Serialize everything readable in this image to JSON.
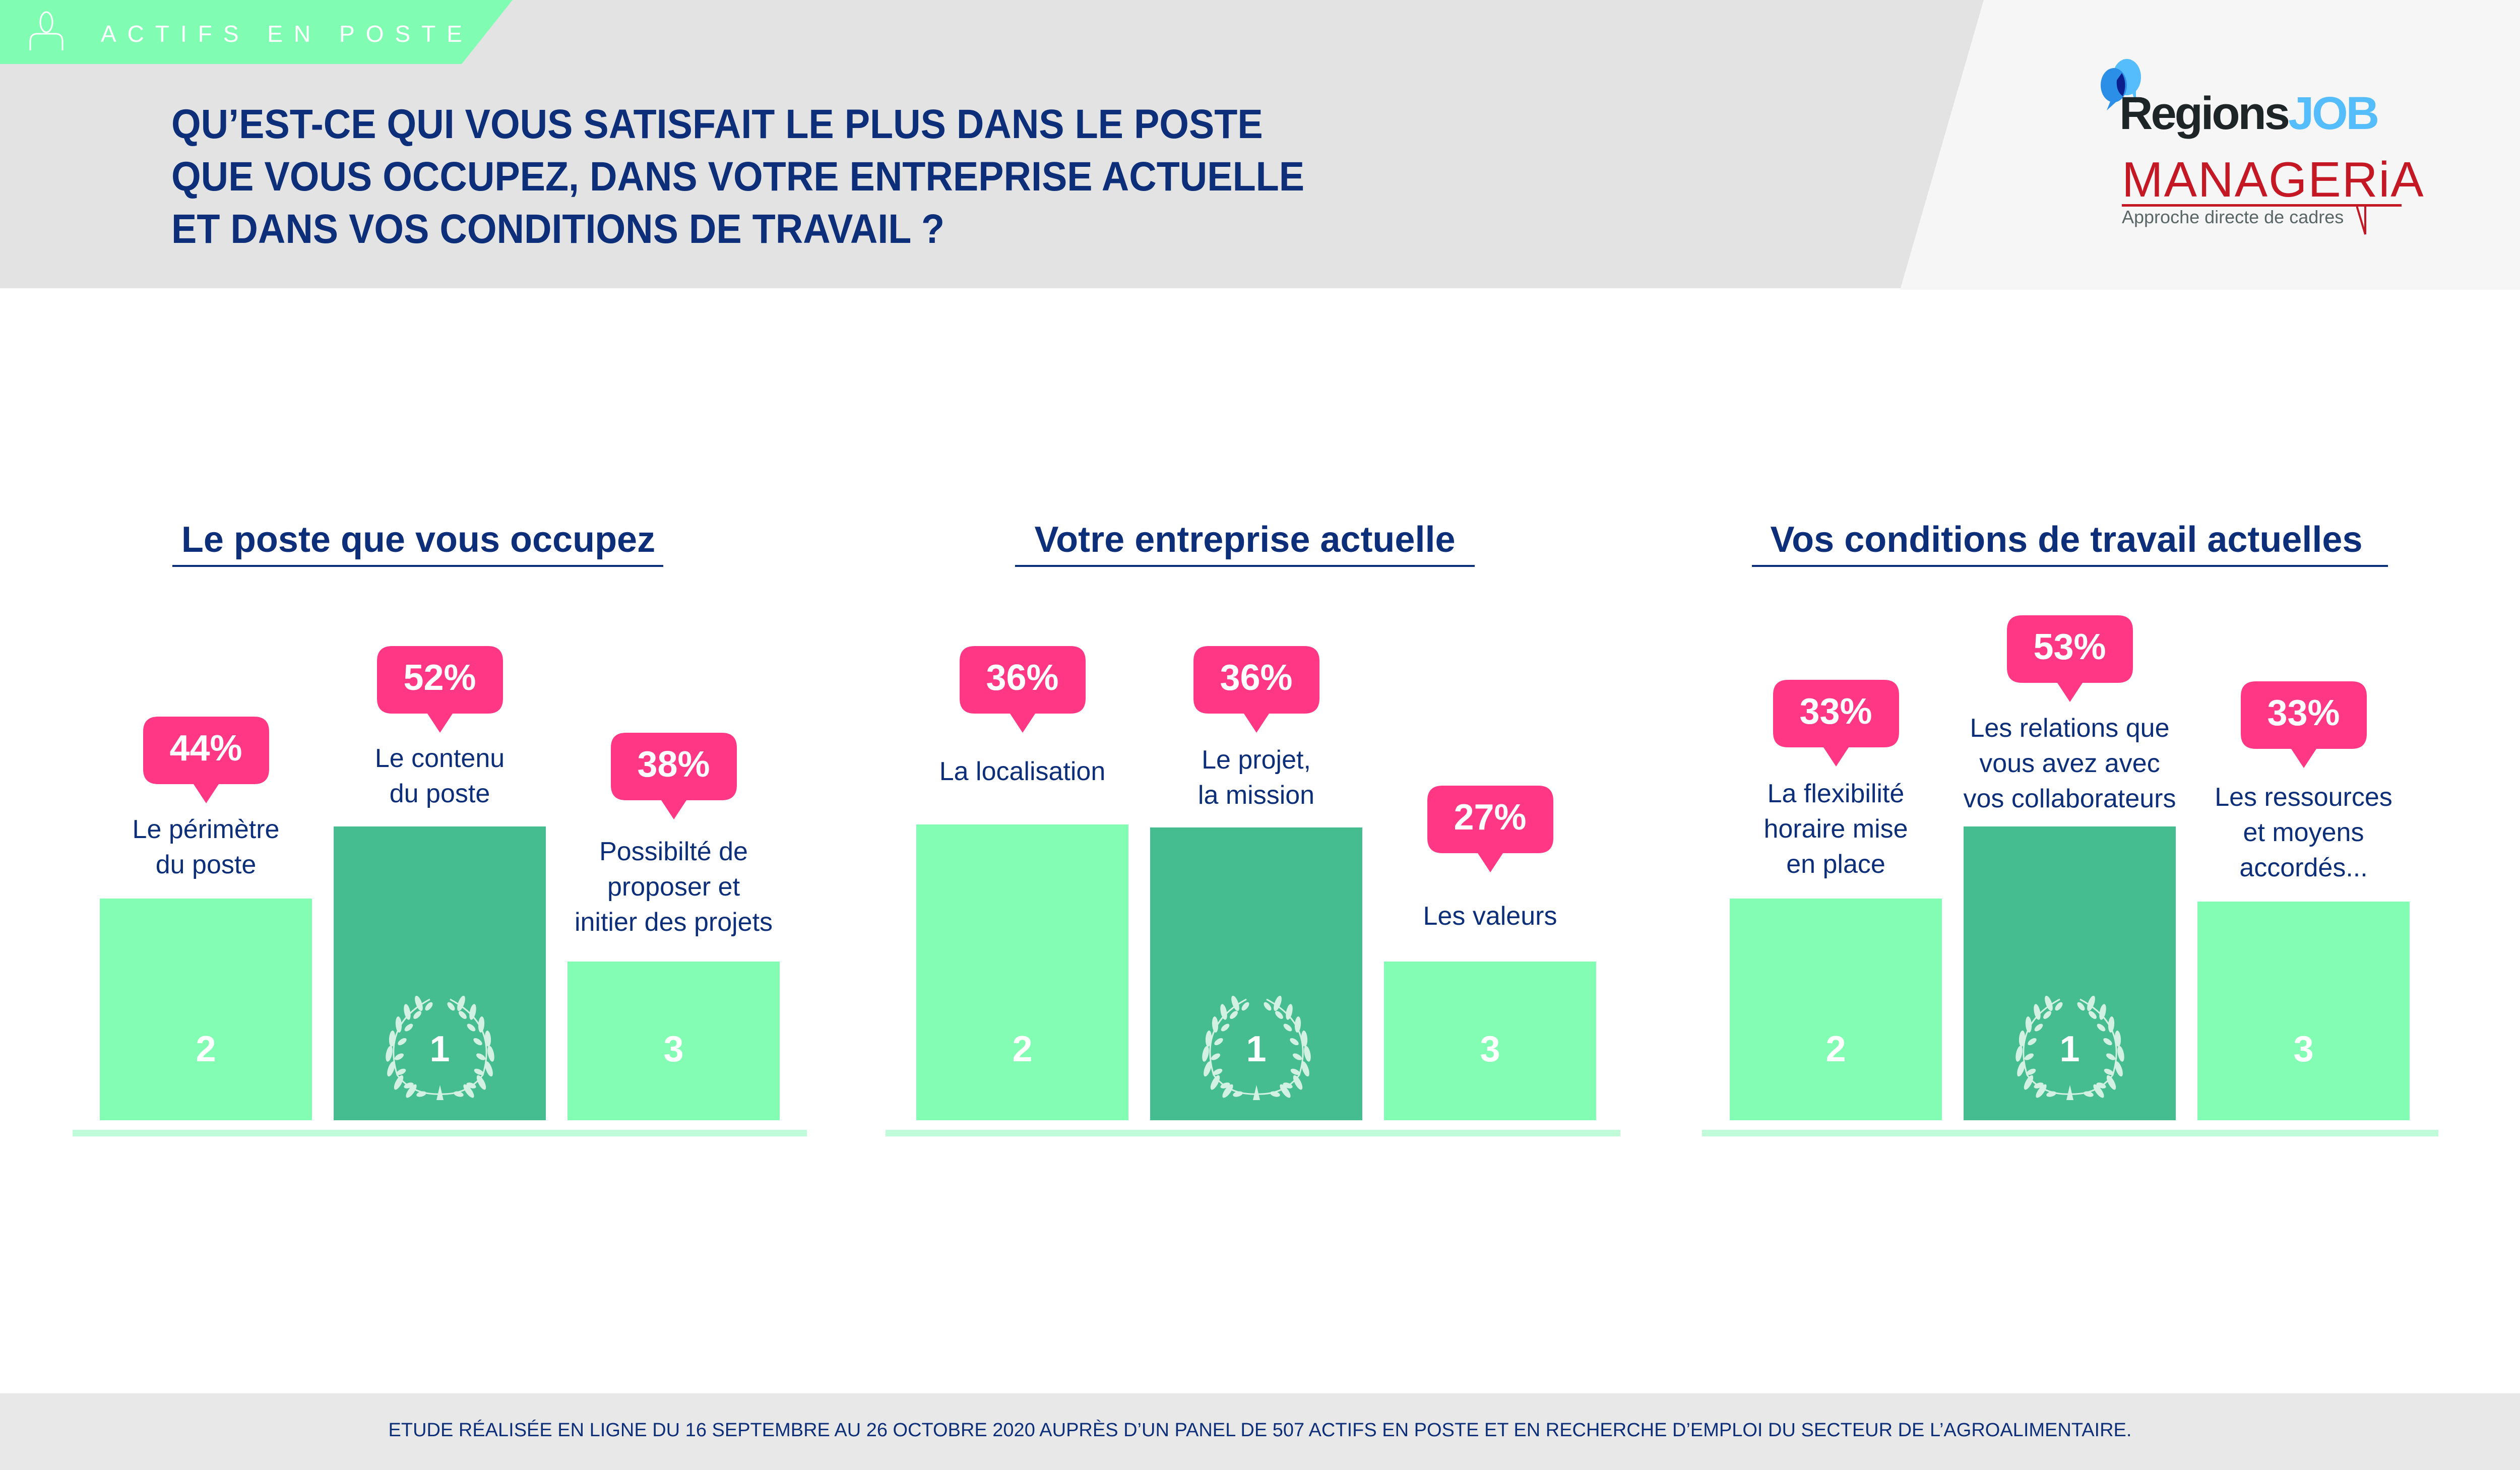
{
  "banner": {
    "label": "ACTIFS EN POSTE",
    "icon": "person-icon"
  },
  "title": {
    "lines": [
      "QU’EST-CE QUI VOUS SATISFAIT LE PLUS DANS LE POSTE",
      "QUE VOUS OCCUPEZ, DANS VOTRE ENTREPRISE ACTUELLE",
      "ET DANS VOS CONDITIONS DE TRAVAIL ?"
    ]
  },
  "logos": {
    "regionsjob": {
      "part1": "Regions",
      "part2": "JOB"
    },
    "manageria": {
      "name": "MANAGERiA",
      "tagline": "Approche directe de cadres"
    }
  },
  "colors": {
    "navy": "#0d2e78",
    "pink": "#ff3784",
    "bar_light": "#82fdb3",
    "bar_dark": "#46bd90",
    "banner_green": "#81fdb3",
    "baseline": "#c0fcd9"
  },
  "chart_data": [
    {
      "type": "bar",
      "subtype": "podium",
      "title": "Le poste que vous occupez",
      "items": [
        {
          "label_lines": [
            "Le périmètre",
            "du poste"
          ],
          "value": 44,
          "display": "44%",
          "rank": 2
        },
        {
          "label_lines": [
            "Le contenu",
            "du poste"
          ],
          "value": 52,
          "display": "52%",
          "rank": 1
        },
        {
          "label_lines": [
            "Possibilté de",
            "proposer et",
            "initier des projets"
          ],
          "value": 38,
          "display": "38%",
          "rank": 3
        }
      ]
    },
    {
      "type": "bar",
      "subtype": "podium",
      "title": "Votre entreprise actuelle",
      "items": [
        {
          "label_lines": [
            "La localisation"
          ],
          "value": 36,
          "display": "36%",
          "rank": 2
        },
        {
          "label_lines": [
            "Le projet,",
            "la mission"
          ],
          "value": 36,
          "display": "36%",
          "rank": 1
        },
        {
          "label_lines": [
            "Les valeurs"
          ],
          "value": 27,
          "display": "27%",
          "rank": 3
        }
      ]
    },
    {
      "type": "bar",
      "subtype": "podium",
      "title": "Vos conditions de travail actuelles",
      "items": [
        {
          "label_lines": [
            "La flexibilité",
            "horaire mise",
            "en place"
          ],
          "value": 33,
          "display": "33%",
          "rank": 2
        },
        {
          "label_lines": [
            "Les relations que",
            "vous avez avec",
            "vos collaborateurs"
          ],
          "value": 53,
          "display": "53%",
          "rank": 1
        },
        {
          "label_lines": [
            "Les ressources",
            "et moyens",
            "accordés..."
          ],
          "value": 33,
          "display": "33%",
          "rank": 3
        }
      ]
    }
  ],
  "footer": {
    "text": "ETUDE RÉALISÉE EN LIGNE DU 16 SEPTEMBRE AU 26 OCTOBRE 2020 AUPRÈS D’UN PANEL DE 507 ACTIFS EN POSTE ET EN RECHERCHE D’EMPLOI DU SECTEUR DE L’AGROALIMENTAIRE."
  }
}
